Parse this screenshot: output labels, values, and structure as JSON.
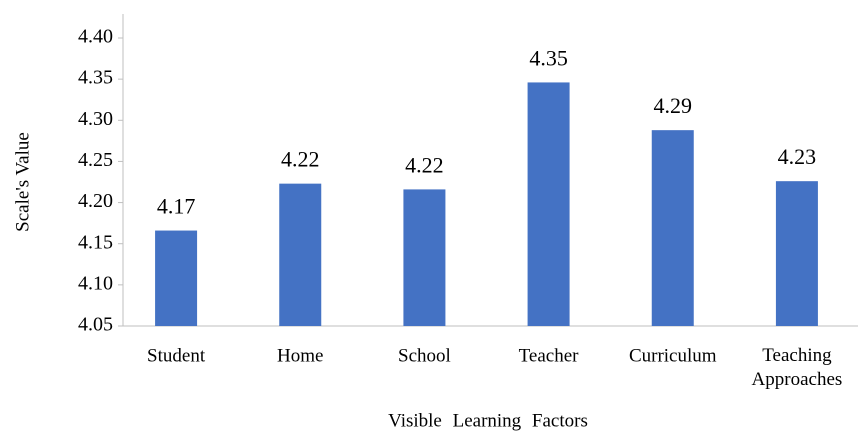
{
  "chart_data": {
    "type": "bar",
    "x_label": "Visible Learning Factors",
    "y_label": "Scale's Value",
    "categories": [
      "Student",
      "Home",
      "School",
      "Teacher",
      "Curriculum",
      "Teaching Approaches"
    ],
    "values": [
      4.166,
      4.223,
      4.216,
      4.346,
      4.288,
      4.226
    ],
    "value_labels": [
      "4.17",
      "4.22",
      "4.22",
      "4.35",
      "4.29",
      "4.23"
    ],
    "color": "#4472c4",
    "ylim": [
      4.05,
      4.4
    ],
    "yticks": [
      4.05,
      {
        "value": 4.1,
        "label": "4.10"
      },
      4.15,
      {
        "value": 4.2,
        "label": "4.20"
      },
      4.25,
      {
        "value": 4.3,
        "label": "4.30"
      },
      4.35,
      {
        "value": 4.4,
        "label": "4.40"
      }
    ],
    "grid": false
  }
}
